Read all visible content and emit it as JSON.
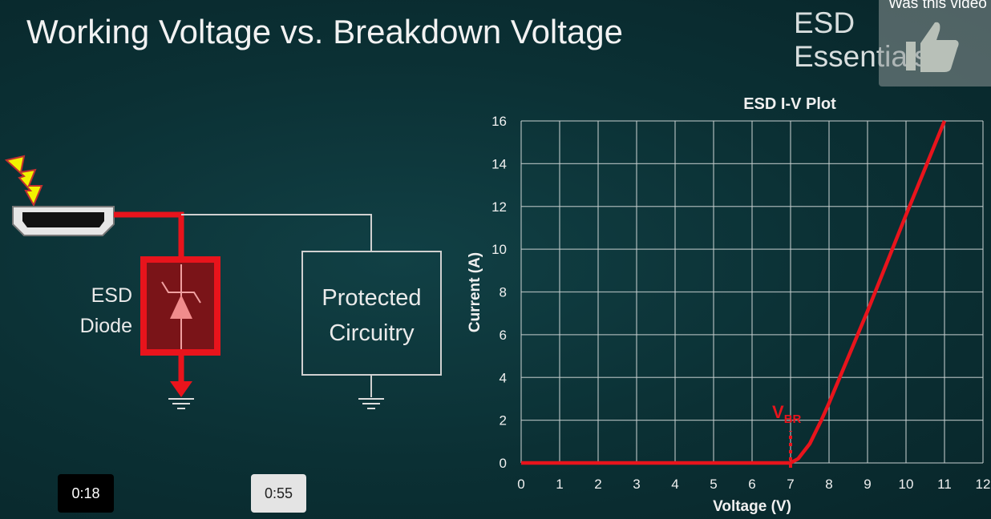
{
  "slide": {
    "title": "Working Voltage vs. Breakdown Voltage",
    "brand": "ESD Essentials",
    "diode_label_1": "ESD",
    "diode_label_2": "Diode",
    "box_label_1": "Protected",
    "box_label_2": "Circuitry"
  },
  "overlay": {
    "question": "Was this video",
    "icon": "thumbs-up-icon"
  },
  "player": {
    "time_current": "0:18",
    "time_total": "0:55"
  },
  "colors": {
    "curve": "#e8141c",
    "background": "#0b3034",
    "grid": "#c8d0d0"
  },
  "chart_data": {
    "type": "line",
    "title": "ESD I-V Plot",
    "xlabel": "Voltage (V)",
    "ylabel": "Current (A)",
    "xlim": [
      0,
      12
    ],
    "ylim": [
      0,
      16
    ],
    "grid": true,
    "xticks": [
      "0",
      "1",
      "2",
      "3",
      "4",
      "5",
      "6",
      "7",
      "8",
      "9",
      "10",
      "11",
      "12"
    ],
    "yticks": [
      "0",
      "2",
      "4",
      "6",
      "8",
      "10",
      "12",
      "14",
      "16"
    ],
    "series": [
      {
        "x": [
          0,
          7,
          7.2,
          7.5,
          7.8,
          8,
          9,
          10,
          11
        ],
        "y": [
          0,
          0,
          0.2,
          0.9,
          2,
          2.8,
          7.1,
          11.6,
          16
        ]
      }
    ],
    "annotation": {
      "text": "V",
      "subscript": "BR",
      "x": 7
    }
  }
}
